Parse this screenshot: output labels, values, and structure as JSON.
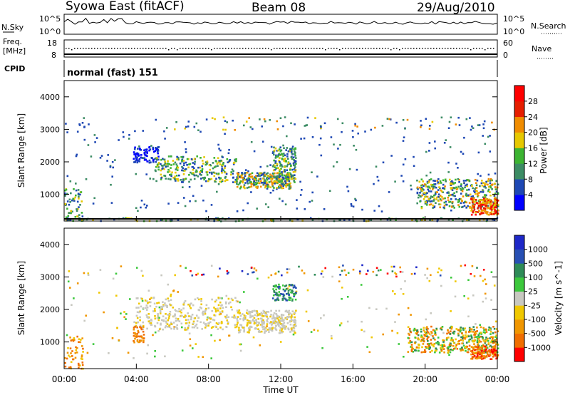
{
  "header": {
    "station": "Syowa East (fitACF)",
    "beam": "Beam 08",
    "date": "29/Aug/2010"
  },
  "top_panels": {
    "nsky": {
      "label": "N.Sky",
      "ticks_left": [
        "10^5",
        "10^0"
      ],
      "ticks_right": [
        "10^5",
        "10^0"
      ],
      "right_label": "N.Search"
    },
    "freq": {
      "label_line1": "Freq.",
      "label_line2": "[MHz]",
      "ticks_left": [
        "18",
        "8"
      ],
      "ticks_right": [
        "60",
        "0"
      ],
      "right_label": "Nave"
    },
    "cpid": {
      "label": "CPID",
      "text": "normal (fast) 151"
    }
  },
  "chart_data": [
    {
      "type": "heatmap",
      "title": "",
      "ylabel": "Slant Range [km]",
      "yticks": [
        "1000",
        "2000",
        "3000",
        "4000"
      ],
      "ylim": [
        180,
        4500
      ],
      "xlim": [
        0,
        24
      ],
      "colorbar": {
        "label": "Power [dB]",
        "tick_labels": [
          "4",
          "8",
          "12",
          "16",
          "20",
          "24",
          "28"
        ],
        "colors": [
          "#0000ff",
          "#1e48b4",
          "#3c8c64",
          "#3cb432",
          "#e6c800",
          "#f08c00",
          "#e61e00",
          "#ff0000"
        ]
      },
      "regions_description": [
        {
          "x": [
            3.8,
            5.2
          ],
          "y": [
            2000,
            2500
          ],
          "value": "8"
        },
        {
          "x": [
            5.0,
            9.5
          ],
          "y": [
            1400,
            2200
          ],
          "value": "8-16"
        },
        {
          "x": [
            9.5,
            12.5
          ],
          "y": [
            1200,
            1700
          ],
          "value": "8-20"
        },
        {
          "x": [
            11.5,
            12.8
          ],
          "y": [
            1400,
            2500
          ],
          "value": "12-20"
        },
        {
          "x": [
            19.5,
            24
          ],
          "y": [
            600,
            1500
          ],
          "value": "8-24"
        },
        {
          "x": [
            22.5,
            24
          ],
          "y": [
            400,
            900
          ],
          "value": "20-28"
        }
      ]
    },
    {
      "type": "heatmap",
      "title": "",
      "ylabel": "Slant Range [km]",
      "xlabel": "Time UT",
      "xticks": [
        "00:00",
        "04:00",
        "08:00",
        "12:00",
        "16:00",
        "20:00",
        "00:00"
      ],
      "yticks": [
        "1000",
        "2000",
        "3000",
        "4000"
      ],
      "ylim": [
        180,
        4500
      ],
      "xlim": [
        0,
        24
      ],
      "colorbar": {
        "label": "Velocity [m s^-1]",
        "tick_labels": [
          "1000",
          "500",
          "100",
          "25",
          "-25",
          "-100",
          "-500",
          "-1000"
        ],
        "colors": [
          "#1e28c8",
          "#2850b4",
          "#2e8b57",
          "#3cc83c",
          "#c8c8c0",
          "#f0c800",
          "#f09600",
          "#f06e00",
          "#ff0000"
        ]
      },
      "regions_description": [
        {
          "x": [
            3.8,
            9.5
          ],
          "y": [
            1400,
            2400
          ],
          "value": "-25..25"
        },
        {
          "x": [
            9.5,
            12.8
          ],
          "y": [
            1300,
            2000
          ],
          "value": "-25..25"
        },
        {
          "x": [
            11.5,
            12.8
          ],
          "y": [
            2300,
            2800
          ],
          "value": "100..500"
        },
        {
          "x": [
            3.8,
            4.4
          ],
          "y": [
            1000,
            1500
          ],
          "value": "-100..-500"
        },
        {
          "x": [
            19.0,
            24
          ],
          "y": [
            700,
            1500
          ],
          "value": "-100..100"
        },
        {
          "x": [
            22.5,
            24
          ],
          "y": [
            500,
            900
          ],
          "value": "-500..-1000"
        }
      ]
    }
  ]
}
